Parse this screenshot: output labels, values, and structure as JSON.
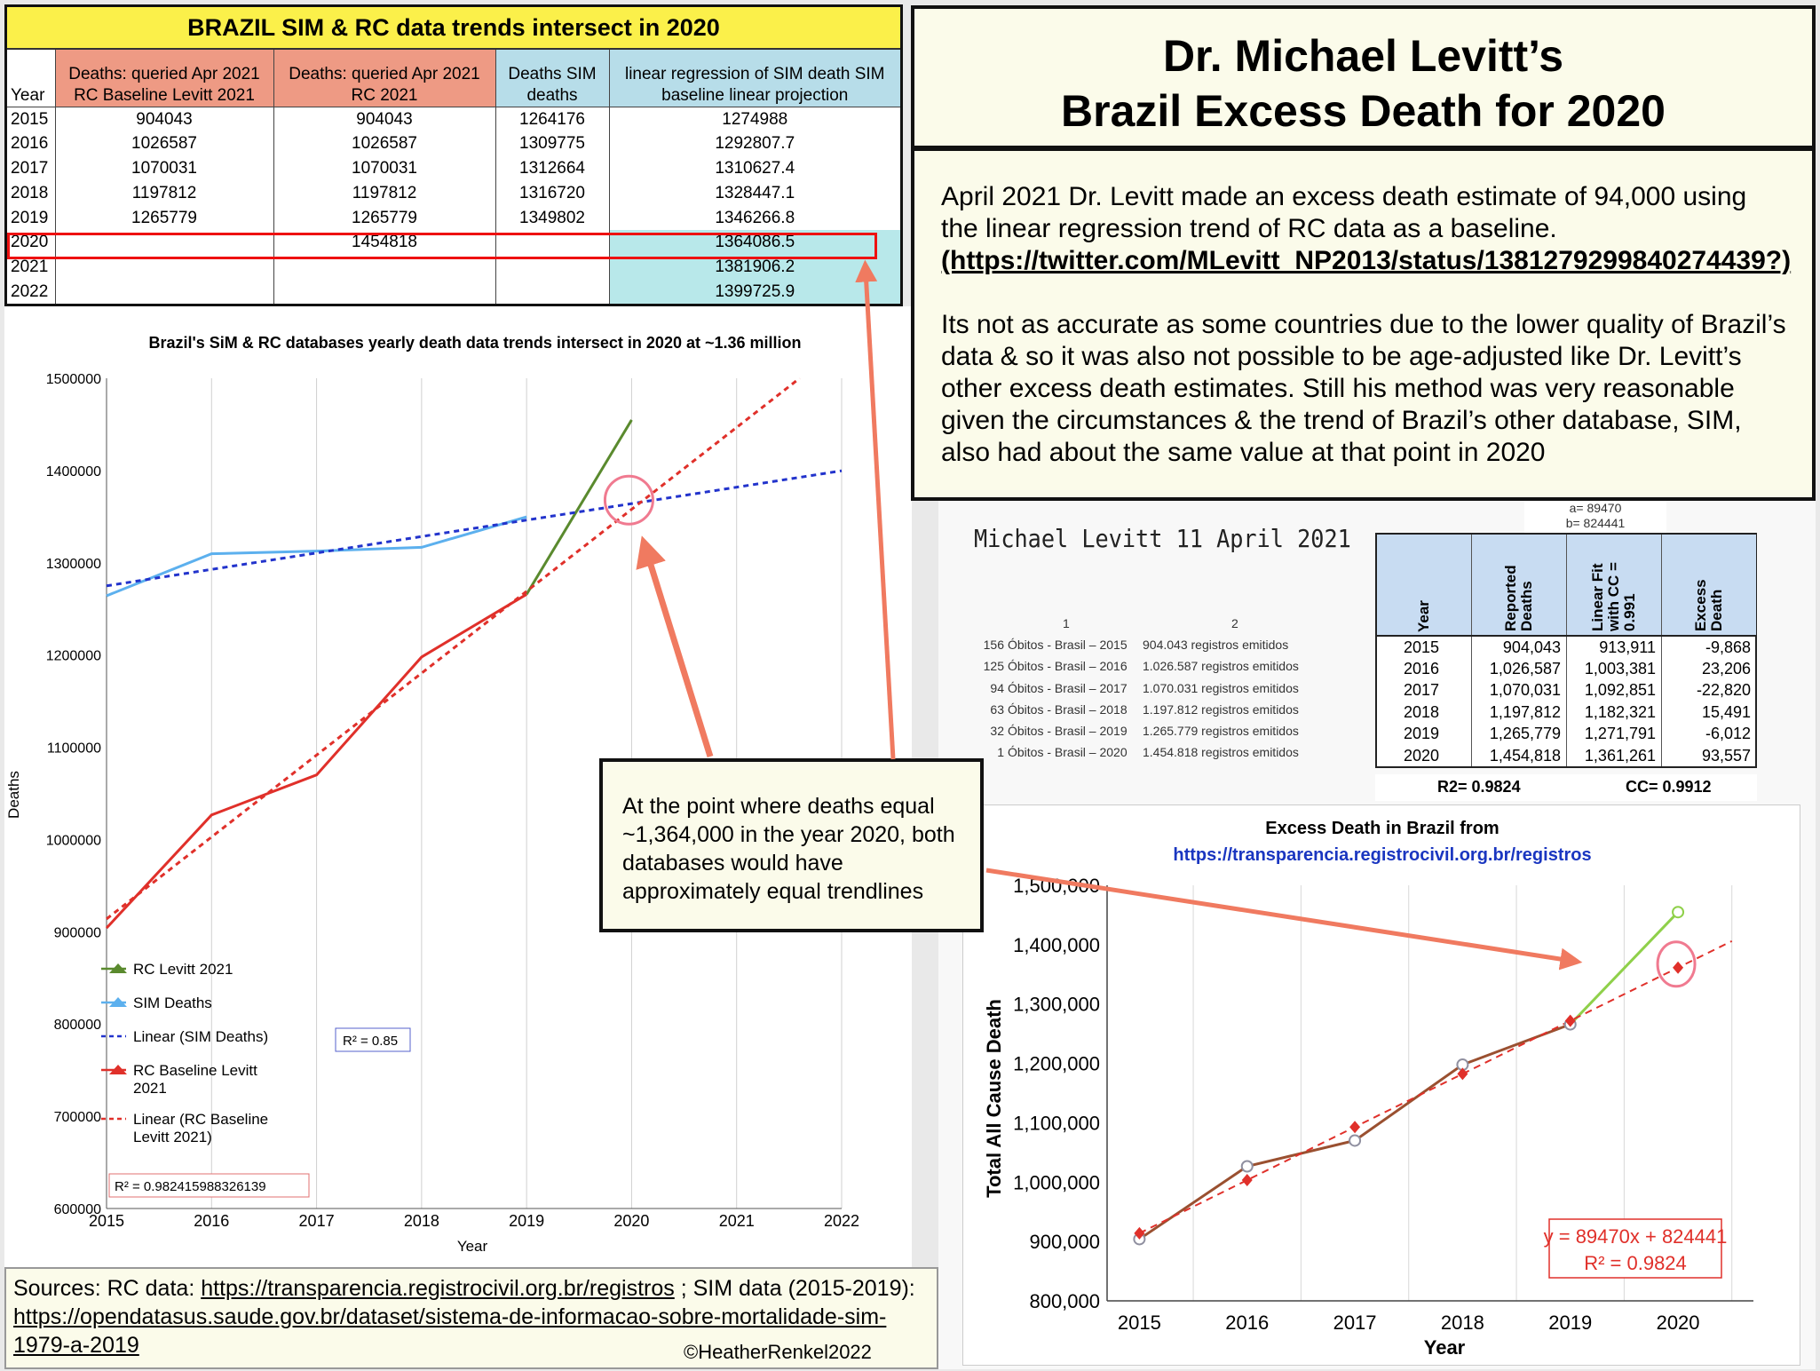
{
  "table": {
    "title": "BRAZIL SIM & RC data trends intersect in 2020",
    "headers": [
      "Year",
      "Deaths: queried Apr 2021 RC Baseline Levitt 2021",
      "Deaths: queried Apr 2021 RC  2021",
      "Deaths SIM deaths",
      "linear regression of SIM death SIM baseline linear projection"
    ],
    "rows": [
      [
        "2015",
        "904043",
        "904043",
        "1264176",
        "1274988"
      ],
      [
        "2016",
        "1026587",
        "1026587",
        "1309775",
        "1292807.7"
      ],
      [
        "2017",
        "1070031",
        "1070031",
        "1312664",
        "1310627.4"
      ],
      [
        "2018",
        "1197812",
        "1197812",
        "1316720",
        "1328447.1"
      ],
      [
        "2019",
        "1265779",
        "1265779",
        "1349802",
        "1346266.8"
      ],
      [
        "2020",
        "",
        "1454818",
        "",
        "1364086.5"
      ],
      [
        "2021",
        "",
        "",
        "",
        "1381906.2"
      ],
      [
        "2022",
        "",
        "",
        "",
        "1399725.9"
      ]
    ]
  },
  "header": {
    "title_line1": "Dr. Michael Levitt’s",
    "title_line2": "Brazil Excess Death for 2020"
  },
  "description": {
    "para1": "April 2021 Dr. Levitt made an excess death estimate of 94,000 using the linear regression trend of RC data as a baseline.",
    "para1_link": "(https://twitter.com/MLevitt_NP2013/status/1381279299840274439?)",
    "para2": "Its not as accurate as some countries due to the lower quality of Brazil’s data & so it was also not possible to be age-adjusted like Dr. Levitt’s other excess death estimates. Still his method was very reasonable given the circumstances & the trend of Brazil’s other database, SIM,  also had about the same value at that point in 2020"
  },
  "callout": "At the point where deaths equal ~1,364,000 in the year 2020, both databases would have approximately equal trendlines",
  "sources": {
    "prefix": "Sources: RC data: ",
    "rc_link": "https://transparencia.registrocivil.org.br/registros",
    "mid": " ; SIM data (2015-2019): ",
    "sim_link": "https://opendatasus.saude.gov.br/dataset/sistema-de-informacao-sobre-mortalidade-sim-1979-a-2019",
    "credit": "©HeatherRenkel2022"
  },
  "levitt": {
    "ab_a": "a= 89470",
    "ab_b": "b= 824441",
    "name": "Michael Levitt   11 April  2021",
    "col1": "1",
    "col2": "2",
    "registry": [
      {
        "idx": "156",
        "label": "Óbitos - Brasil – 2015",
        "value": "904.043 registros emitidos"
      },
      {
        "idx": "125",
        "label": "Óbitos - Brasil – 2016",
        "value": "1.026.587 registros emitidos"
      },
      {
        "idx": "94",
        "label": "Óbitos - Brasil – 2017",
        "value": "1.070.031 registros emitidos"
      },
      {
        "idx": "63",
        "label": "Óbitos - Brasil – 2018",
        "value": "1.197.812 registros emitidos"
      },
      {
        "idx": "32",
        "label": "Óbitos - Brasil – 2019",
        "value": "1.265.779 registros emitidos"
      },
      {
        "idx": "1",
        "label": "Óbitos - Brasil – 2020",
        "value": "1.454.818 registros emitidos"
      }
    ],
    "table_headers": [
      "Year",
      "Reported Deaths",
      "Linear Fit with CC = 0.991",
      "Excess Death"
    ],
    "table_rows": [
      [
        "2015",
        "904,043",
        "913,911",
        "-9,868"
      ],
      [
        "2016",
        "1,026,587",
        "1,003,381",
        "23,206"
      ],
      [
        "2017",
        "1,070,031",
        "1,092,851",
        "-22,820"
      ],
      [
        "2018",
        "1,197,812",
        "1,182,321",
        "15,491"
      ],
      [
        "2019",
        "1,265,779",
        "1,271,791",
        "-6,012"
      ],
      [
        "2020",
        "1,454,818",
        "1,361,261",
        "93,557"
      ]
    ],
    "r2": "R2= 0.9824",
    "cc": "CC= 0.9912"
  },
  "chart_data": [
    {
      "type": "line",
      "title": "Brazil's SiM & RC databases yearly death data trends intersect in 2020 at ~1.36 million",
      "xlabel": "Year",
      "ylabel": "Deaths",
      "xlim": [
        2015,
        2022
      ],
      "ylim": [
        600000,
        1500000
      ],
      "xticks": [
        "2015",
        "2016",
        "2017",
        "2018",
        "2019",
        "2020",
        "2021",
        "2022"
      ],
      "yticks": [
        "600000",
        "700000",
        "800000",
        "900000",
        "1000000",
        "1100000",
        "1200000",
        "1300000",
        "1400000",
        "1500000"
      ],
      "grid": "vertical",
      "legend_position": "bottom-left",
      "series": [
        {
          "name": "RC Levitt 2021",
          "color": "#5a8a2e",
          "style": "solid",
          "x": [
            2019,
            2020
          ],
          "values": [
            1265779,
            1454818
          ]
        },
        {
          "name": "SIM Deaths",
          "color": "#5cb0ee",
          "style": "solid",
          "x": [
            2015,
            2016,
            2017,
            2018,
            2019
          ],
          "values": [
            1264176,
            1309775,
            1312664,
            1316720,
            1349802
          ]
        },
        {
          "name": "Linear (SIM Deaths)",
          "color": "#2233cc",
          "style": "dotted",
          "x": [
            2015,
            2022
          ],
          "values": [
            1274988,
            1399725.9
          ]
        },
        {
          "name": "RC  Baseline Levitt 2021",
          "color": "#e0302a",
          "style": "solid",
          "x": [
            2015,
            2016,
            2017,
            2018,
            2019
          ],
          "values": [
            904043,
            1026587,
            1070031,
            1197812,
            1265779
          ]
        },
        {
          "name": "Linear (RC  Baseline Levitt 2021)",
          "color": "#e0302a",
          "style": "dotted",
          "x": [
            2015,
            2021.6
          ],
          "values": [
            913911,
            1500000
          ]
        }
      ],
      "annotations": [
        "R² = 0.85",
        "R² = 0.982415988326139"
      ],
      "highlight": {
        "x": 2020,
        "y": 1364086.5
      }
    },
    {
      "type": "line",
      "title": "Excess Death in Brazil from",
      "subtitle": "https://transparencia.registrocivil.org.br/registros",
      "xlabel": "Year",
      "ylabel": "Total All Cause Death",
      "xlim": [
        2014.7,
        2020.7
      ],
      "ylim": [
        800000,
        1500000
      ],
      "xticks": [
        "2015",
        "2016",
        "2017",
        "2018",
        "2019",
        "2020"
      ],
      "yticks": [
        "800,000",
        "900,000",
        "1,000,000",
        "1,100,000",
        "1,200,000",
        "1,300,000",
        "1,400,000",
        "1,500,000"
      ],
      "grid": "vertical",
      "series": [
        {
          "name": "Reported",
          "color": "#8a6a5a",
          "marker": "open-circle",
          "x": [
            2015,
            2016,
            2017,
            2018,
            2019,
            2020
          ],
          "values": [
            904043,
            1026587,
            1070031,
            1197812,
            1265779,
            1454818
          ]
        },
        {
          "name": "Linear Fit",
          "color": "#e0302a",
          "marker": "diamond",
          "x": [
            2015,
            2016,
            2017,
            2018,
            2019,
            2020
          ],
          "values": [
            913911,
            1003381,
            1092851,
            1182321,
            1271791,
            1361261
          ]
        }
      ],
      "equation": "y = 89470x + 824441",
      "r2": "R² = 0.9824"
    }
  ]
}
